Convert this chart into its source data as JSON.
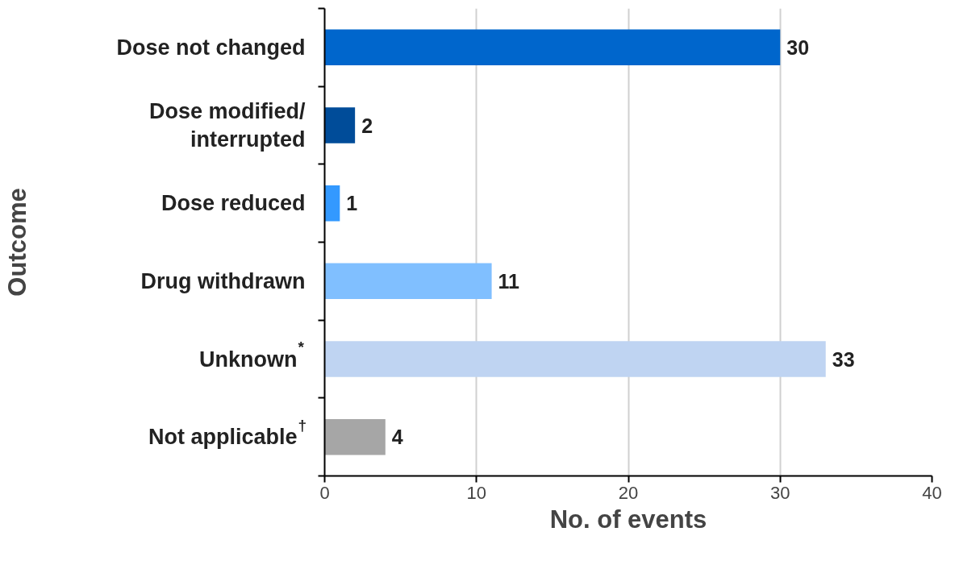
{
  "chart_data": {
    "type": "bar",
    "orientation": "horizontal",
    "categories": [
      "Dose not changed",
      "Dose modified/\ninterrupted",
      "Dose reduced",
      "Drug withdrawn",
      "Unknown$^{*}$",
      "Not applicable$^{†}$"
    ],
    "values": [
      30,
      2,
      1,
      11,
      33,
      4
    ],
    "colors": [
      "#0066cc",
      "#004c99",
      "#3399ff",
      "#80bfff",
      "#bfd4f2",
      "#a6a6a6"
    ],
    "xlim": [
      0,
      40
    ],
    "xticks": [
      0,
      10,
      20,
      30,
      40
    ],
    "xlabel": "No. of events",
    "ylabel": "Outcome",
    "grid": "x",
    "data_labels": true
  }
}
